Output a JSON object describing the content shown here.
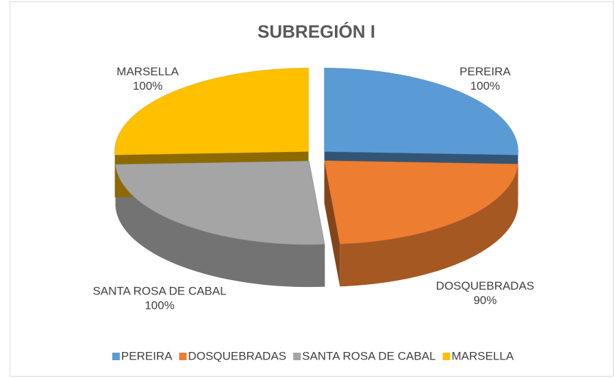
{
  "chart_data": {
    "type": "pie3d",
    "title": "SUBREGIÓN I",
    "categories": [
      "PEREIRA",
      "DOSQUEBRADAS",
      "SANTA ROSA DE CABAL",
      "MARSELLA"
    ],
    "values": [
      100,
      90,
      100,
      100
    ],
    "value_labels": [
      "100%",
      "90%",
      "100%",
      "100%"
    ],
    "colors": [
      "#5b9bd5",
      "#ed7d31",
      "#a5a5a5",
      "#ffc000"
    ],
    "legend": "bottom"
  }
}
